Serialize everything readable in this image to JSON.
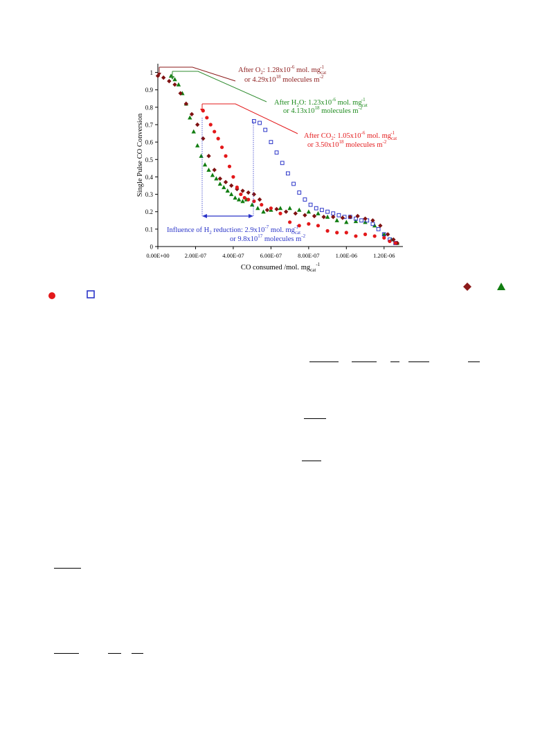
{
  "chart_data": {
    "type": "scatter",
    "xlabel": "CO consumed /mol. mg",
    "xlabel_sub": "cat",
    "xlabel_sup": "-1",
    "ylabel": "Single Pulse CO Conversion",
    "xlim": [
      0,
      1.3e-06
    ],
    "ylim": [
      0,
      1.05
    ],
    "x_ticks": [
      0,
      2e-07,
      4e-07,
      6e-07,
      8e-07,
      1e-06,
      1.2e-06
    ],
    "x_tick_labels": [
      "0.00E+00",
      "2.00E-07",
      "4.00E-07",
      "6.00E-07",
      "8.00E-07",
      "1.00E-06",
      "1.20E-06"
    ],
    "y_ticks": [
      0,
      0.1,
      0.2,
      0.3,
      0.4,
      0.5,
      0.6,
      0.7,
      0.8,
      0.9,
      1
    ],
    "y_tick_labels": [
      "0",
      "0.1",
      "0.2",
      "0.3",
      "0.4",
      "0.5",
      "0.6",
      "0.7",
      "0.8",
      "0.9",
      "1"
    ],
    "grid": false,
    "series": [
      {
        "color": "#7f1212",
        "marker": "diamond",
        "x": [
          0,
          3e-08,
          6e-08,
          9e-08,
          1.2e-07,
          1.5e-07,
          1.8e-07,
          2.1e-07,
          2.4e-07,
          2.7e-07,
          3e-07,
          3.3e-07,
          3.6e-07,
          3.9e-07,
          4.2e-07,
          4.5e-07,
          4.8e-07,
          5.1e-07,
          5.4e-07,
          5.8e-07,
          6.3e-07,
          6.8e-07,
          7.3e-07,
          7.8e-07,
          8.3e-07,
          8.8e-07,
          9.3e-07,
          9.8e-07,
          1.02e-06,
          1.06e-06,
          1.1e-06,
          1.14e-06,
          1.18e-06,
          1.22e-06,
          1.25e-06,
          1.27e-06
        ],
        "y": [
          0.98,
          0.97,
          0.95,
          0.93,
          0.88,
          0.82,
          0.76,
          0.7,
          0.62,
          0.52,
          0.44,
          0.39,
          0.37,
          0.35,
          0.33,
          0.32,
          0.31,
          0.3,
          0.27,
          0.21,
          0.215,
          0.2,
          0.19,
          0.18,
          0.175,
          0.17,
          0.17,
          0.165,
          0.17,
          0.175,
          0.16,
          0.15,
          0.12,
          0.07,
          0.04,
          0.02
        ]
      },
      {
        "color": "#117d11",
        "marker": "triangle",
        "x": [
          7e-08,
          9e-08,
          1.1e-07,
          1.3e-07,
          1.5e-07,
          1.7e-07,
          1.9e-07,
          2.1e-07,
          2.3e-07,
          2.5e-07,
          2.7e-07,
          2.9e-07,
          3.1e-07,
          3.3e-07,
          3.5e-07,
          3.7e-07,
          3.9e-07,
          4.1e-07,
          4.3e-07,
          4.5e-07,
          4.7e-07,
          5e-07,
          5.3e-07,
          5.6e-07,
          6e-07,
          6.5e-07,
          7e-07,
          7.5e-07,
          8e-07,
          8.5e-07,
          9e-07,
          9.5e-07,
          1e-06,
          1.05e-06,
          1.1e-06,
          1.15e-06,
          1.2e-06,
          1.24e-06,
          1.27e-06
        ],
        "y": [
          0.98,
          0.96,
          0.93,
          0.88,
          0.82,
          0.74,
          0.66,
          0.58,
          0.52,
          0.47,
          0.44,
          0.41,
          0.39,
          0.36,
          0.34,
          0.32,
          0.3,
          0.28,
          0.27,
          0.26,
          0.27,
          0.24,
          0.22,
          0.2,
          0.21,
          0.22,
          0.22,
          0.21,
          0.2,
          0.19,
          0.17,
          0.15,
          0.14,
          0.145,
          0.14,
          0.12,
          0.07,
          0.04,
          0.02
        ]
      },
      {
        "color": "#e3181a",
        "marker": "circle",
        "x": [
          2.4e-07,
          2.6e-07,
          2.8e-07,
          3e-07,
          3.2e-07,
          3.4e-07,
          3.6e-07,
          3.8e-07,
          4e-07,
          4.2e-07,
          4.4e-07,
          4.6e-07,
          4.8e-07,
          5.1e-07,
          5.5e-07,
          6e-07,
          6.5e-07,
          7e-07,
          7.5e-07,
          8e-07,
          8.5e-07,
          9e-07,
          9.5e-07,
          1e-06,
          1.05e-06,
          1.1e-06,
          1.15e-06,
          1.2e-06,
          1.23e-06,
          1.26e-06
        ],
        "y": [
          0.78,
          0.74,
          0.7,
          0.66,
          0.62,
          0.57,
          0.52,
          0.46,
          0.4,
          0.34,
          0.3,
          0.28,
          0.27,
          0.26,
          0.24,
          0.22,
          0.19,
          0.14,
          0.12,
          0.13,
          0.12,
          0.09,
          0.08,
          0.08,
          0.06,
          0.07,
          0.06,
          0.05,
          0.03,
          0.02
        ]
      },
      {
        "color": "#2a34c8",
        "marker": "square",
        "x": [
          5.1e-07,
          5.4e-07,
          5.7e-07,
          6e-07,
          6.3e-07,
          6.6e-07,
          6.9e-07,
          7.2e-07,
          7.5e-07,
          7.8e-07,
          8.1e-07,
          8.4e-07,
          8.7e-07,
          9e-07,
          9.3e-07,
          9.6e-07,
          9.9e-07,
          1.02e-06,
          1.05e-06,
          1.08e-06,
          1.11e-06,
          1.14e-06,
          1.17e-06,
          1.2e-06,
          1.23e-06,
          1.26e-06
        ],
        "y": [
          0.72,
          0.71,
          0.67,
          0.6,
          0.54,
          0.48,
          0.42,
          0.36,
          0.31,
          0.27,
          0.24,
          0.22,
          0.21,
          0.2,
          0.19,
          0.18,
          0.17,
          0.17,
          0.16,
          0.15,
          0.15,
          0.13,
          0.1,
          0.07,
          0.04,
          0.02
        ]
      }
    ],
    "annotations": [
      {
        "color": "#8b1a1a",
        "line1": [
          "After O",
          "2",
          ": 1.28x10",
          "-6",
          " mol. mg",
          "cat",
          "-1"
        ],
        "line2": [
          "or 4.29x10",
          "18",
          " molecules m",
          "-2"
        ]
      },
      {
        "color": "#1c8a1c",
        "line1": [
          "After H",
          "2",
          "O: 1.23x10",
          "-6",
          " mol. mg",
          "cat",
          "-1"
        ],
        "line2": [
          "or 4.13x10",
          "18",
          " molecules m",
          "-2"
        ]
      },
      {
        "color": "#e3181a",
        "line1": [
          "After CO",
          "2",
          ": 1.05x10",
          "-6",
          " mol. mg",
          "cat",
          "-1"
        ],
        "line2": [
          "or 3.50x10",
          "18",
          " molecules m",
          "-2"
        ]
      },
      {
        "color": "#2a34c8",
        "line1": [
          "Influence of H",
          "2",
          " reduction: 2.9x10",
          "-7",
          " mol. mg",
          "cat",
          "-1"
        ],
        "line2": [
          "or 9.8x10",
          "17",
          " molecules m",
          "-2"
        ]
      }
    ]
  },
  "legend_markers": [
    {
      "name": "diamond",
      "color": "#8b1a1a"
    },
    {
      "name": "triangle",
      "color": "#117d11"
    },
    {
      "name": "circle",
      "color": "#e3181a"
    },
    {
      "name": "square",
      "color": "#2a34c8"
    }
  ]
}
